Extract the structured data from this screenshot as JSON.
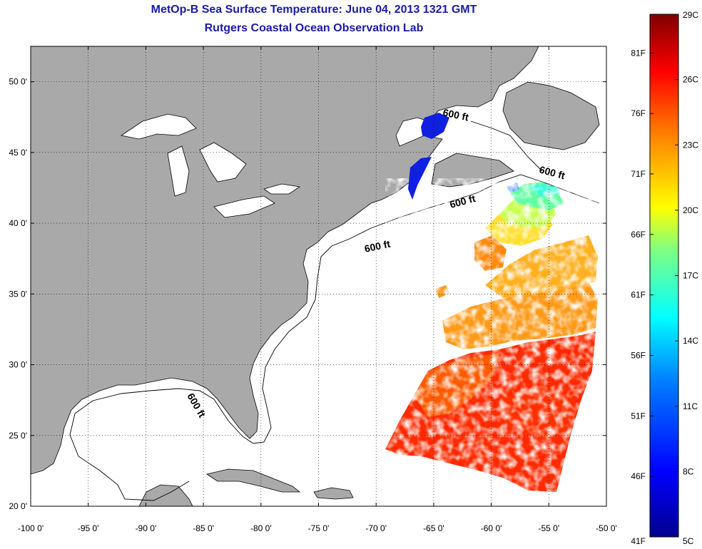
{
  "title": {
    "line1": "MetOp-B Sea Surface Temperature:  June 04, 2013 1321 GMT",
    "line2": "Rutgers Coastal Ocean Observation Lab"
  },
  "map": {
    "lon_range": [
      -100,
      -50
    ],
    "lat_range": [
      20,
      52.5
    ],
    "lon_ticks": [
      {
        "value": -100,
        "label": "-100 0'"
      },
      {
        "value": -95,
        "label": "-95 0'"
      },
      {
        "value": -90,
        "label": "-90 0'"
      },
      {
        "value": -85,
        "label": "-85 0'"
      },
      {
        "value": -80,
        "label": "-80 0'"
      },
      {
        "value": -75,
        "label": "-75 0'"
      },
      {
        "value": -70,
        "label": "-70 0'"
      },
      {
        "value": -65,
        "label": "-65 0'"
      },
      {
        "value": -60,
        "label": "-60 0'"
      },
      {
        "value": -55,
        "label": "-55 0'"
      },
      {
        "value": -50,
        "label": "-50 0'"
      }
    ],
    "lat_ticks": [
      {
        "value": 20,
        "label": "20 0'"
      },
      {
        "value": 25,
        "label": "25 0'"
      },
      {
        "value": 30,
        "label": "30 0'"
      },
      {
        "value": 35,
        "label": "35 0'"
      },
      {
        "value": 40,
        "label": "40 0'"
      },
      {
        "value": 45,
        "label": "45 0'"
      },
      {
        "value": 50,
        "label": "50 0'"
      }
    ],
    "grid": "dotted",
    "land_color": "#a9a9a9",
    "ocean_color": "#ffffff",
    "contour_labels": [
      "600 ft",
      "600 ft",
      "600 ft",
      "600 ft",
      "600 ft"
    ]
  },
  "colorbar": {
    "min_c": 5,
    "max_c": 29,
    "celsius_ticks": [
      {
        "value": 5,
        "label": "5C"
      },
      {
        "value": 8,
        "label": "8C"
      },
      {
        "value": 11,
        "label": "11C"
      },
      {
        "value": 14,
        "label": "14C"
      },
      {
        "value": 17,
        "label": "17C"
      },
      {
        "value": 20,
        "label": "20C"
      },
      {
        "value": 23,
        "label": "23C"
      },
      {
        "value": 26,
        "label": "26C"
      },
      {
        "value": 29,
        "label": "29C"
      }
    ],
    "fahrenheit_ticks": [
      {
        "value": 41,
        "label": "41F"
      },
      {
        "value": 46,
        "label": "46F"
      },
      {
        "value": 51,
        "label": "51F"
      },
      {
        "value": 56,
        "label": "56F"
      },
      {
        "value": 61,
        "label": "61F"
      },
      {
        "value": 66,
        "label": "66F"
      },
      {
        "value": 71,
        "label": "71F"
      },
      {
        "value": 76,
        "label": "76F"
      },
      {
        "value": 81,
        "label": "81F"
      }
    ],
    "colors": [
      "#00008f",
      "#0000ff",
      "#0080ff",
      "#00ffff",
      "#80ff80",
      "#ffff00",
      "#ff8000",
      "#ff0000",
      "#800000"
    ]
  }
}
